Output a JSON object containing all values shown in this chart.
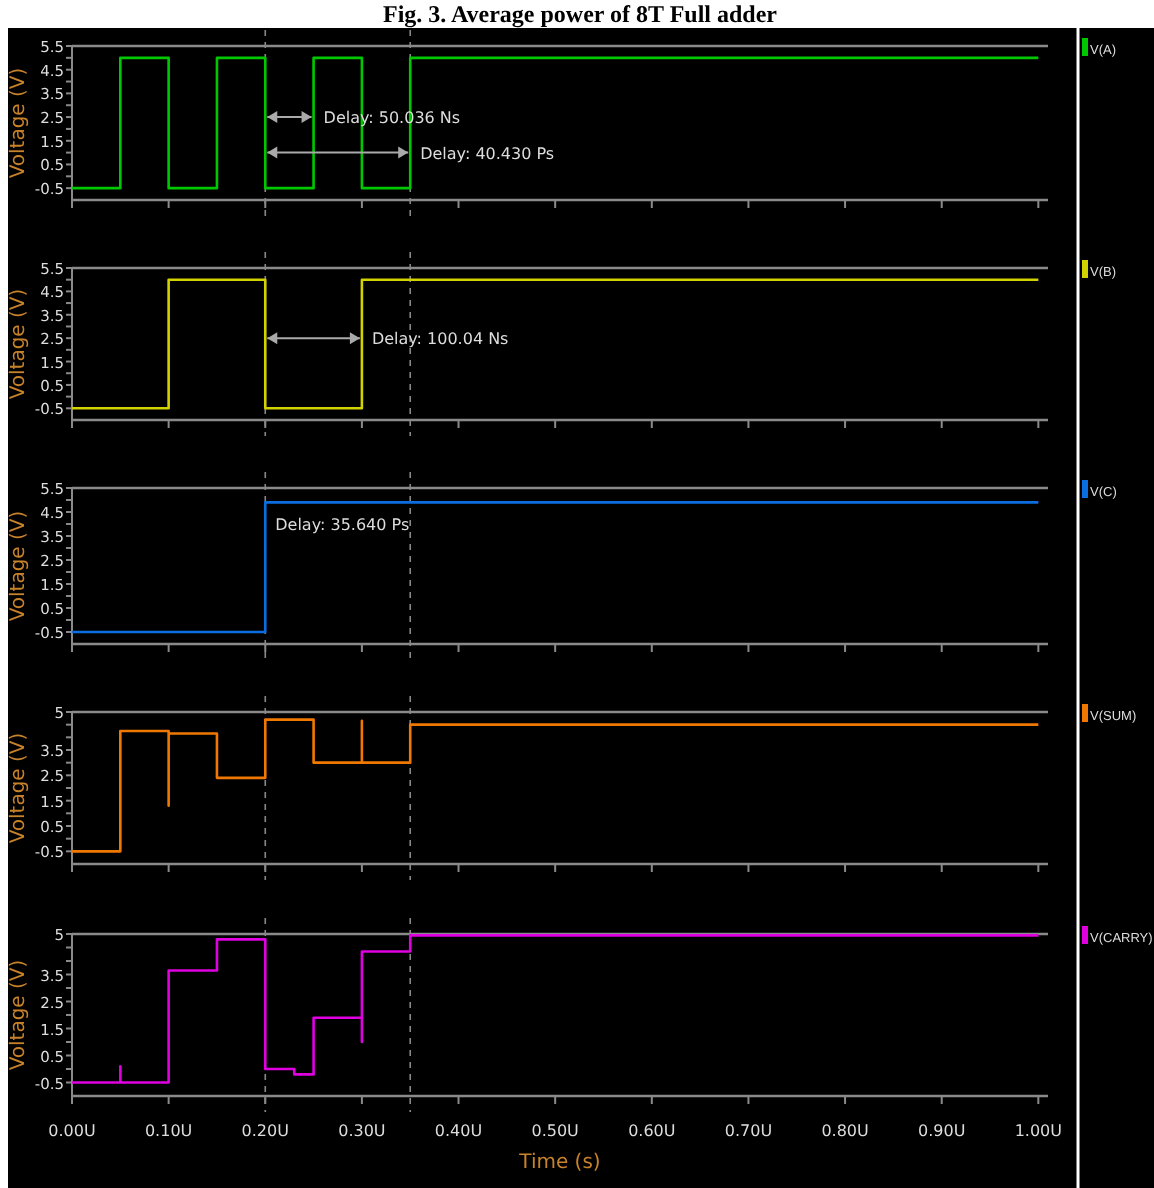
{
  "chart_data": [
    {
      "type": "line",
      "title": "Fig. 3. Average power of 8T Full adder",
      "ylabel": "Voltage (V)",
      "tick_labels": "y",
      "legend": "right",
      "xlim": [
        0,
        1.01
      ],
      "xticks": [
        0,
        0.1,
        0.2,
        0.3,
        0.4,
        0.5,
        0.6,
        0.7,
        0.8,
        0.9,
        1.0
      ],
      "ylim": [
        -1,
        5.5
      ],
      "yticks": [
        5.5,
        {
          "value": 5,
          "label": null
        },
        4.5,
        {
          "value": 4,
          "label": null
        },
        3.5,
        {
          "value": 3,
          "label": null
        },
        2.5,
        {
          "value": 2,
          "label": null
        },
        1.5,
        {
          "value": 1,
          "label": null
        },
        0.5,
        {
          "value": 0,
          "label": null
        },
        -0.5
      ],
      "series": [
        {
          "name": "V(A)",
          "color": "#00c800",
          "x": [
            0,
            0.05,
            0.05,
            0.1,
            0.1,
            0.15,
            0.15,
            0.2,
            0.2,
            0.25,
            0.25,
            0.3,
            0.3,
            0.35,
            0.35,
            1.0
          ],
          "values": [
            -0.5,
            -0.5,
            5.0,
            5.0,
            -0.5,
            -0.5,
            5.0,
            5.0,
            -0.5,
            -0.5,
            5.0,
            5.0,
            -0.5,
            -0.5,
            5.0,
            5.0
          ]
        }
      ],
      "ref_lines": [
        {
          "axis": "x",
          "value": 0.2
        },
        {
          "axis": "x",
          "value": 0.35
        }
      ],
      "annotations": [
        {
          "text": "Delay: 50.036 Ns",
          "x": 0.25,
          "y": 2.5
        },
        {
          "text": "Delay: 40.430 Ps",
          "x": 0.35,
          "y": 1.0
        }
      ]
    },
    {
      "type": "line",
      "ylabel": "Voltage (V)",
      "tick_labels": "y",
      "legend": "right",
      "xlim": [
        0,
        1.01
      ],
      "xticks": [
        0,
        0.1,
        0.2,
        0.3,
        0.4,
        0.5,
        0.6,
        0.7,
        0.8,
        0.9,
        1.0
      ],
      "ylim": [
        -1,
        5.5
      ],
      "yticks": [
        5.5,
        {
          "value": 5,
          "label": null
        },
        4.5,
        {
          "value": 4,
          "label": null
        },
        3.5,
        {
          "value": 3,
          "label": null
        },
        2.5,
        {
          "value": 2,
          "label": null
        },
        1.5,
        {
          "value": 1,
          "label": null
        },
        0.5,
        {
          "value": 0,
          "label": null
        },
        -0.5
      ],
      "series": [
        {
          "name": "V(B)",
          "color": "#d2d200",
          "x": [
            0,
            0.1,
            0.1,
            0.2,
            0.2,
            0.3,
            0.3,
            1.0
          ],
          "values": [
            -0.5,
            -0.5,
            5.0,
            5.0,
            -0.5,
            -0.5,
            5.0,
            5.0
          ]
        }
      ],
      "ref_lines": [
        {
          "axis": "x",
          "value": 0.2
        },
        {
          "axis": "x",
          "value": 0.35
        }
      ],
      "annotations": [
        {
          "text": "Delay: 100.04 Ns",
          "x": 0.3,
          "y": 2.5
        }
      ]
    },
    {
      "type": "line",
      "ylabel": "Voltage (V)",
      "tick_labels": "y",
      "legend": "right",
      "xlim": [
        0,
        1.01
      ],
      "xticks": [
        0,
        0.1,
        0.2,
        0.3,
        0.4,
        0.5,
        0.6,
        0.7,
        0.8,
        0.9,
        1.0
      ],
      "ylim": [
        -1,
        5.5
      ],
      "yticks": [
        5.5,
        {
          "value": 5,
          "label": null
        },
        4.5,
        {
          "value": 4,
          "label": null
        },
        3.5,
        {
          "value": 3,
          "label": null
        },
        2.5,
        {
          "value": 2,
          "label": null
        },
        1.5,
        {
          "value": 1,
          "label": null
        },
        0.5,
        {
          "value": 0,
          "label": null
        },
        -0.5
      ],
      "series": [
        {
          "name": "V(C)",
          "color": "#0a6ee0",
          "x": [
            0,
            0.2,
            0.2,
            1.0
          ],
          "values": [
            -0.5,
            -0.5,
            4.9,
            4.9
          ]
        }
      ],
      "ref_lines": [
        {
          "axis": "x",
          "value": 0.2
        },
        {
          "axis": "x",
          "value": 0.35
        }
      ],
      "annotations": [
        {
          "text": "Delay: 35.640 Ps",
          "x": 0.2,
          "y": 4.0
        }
      ]
    },
    {
      "type": "line",
      "ylabel": "Voltage (V)",
      "tick_labels": "y",
      "legend": "right",
      "xlim": [
        0,
        1.01
      ],
      "xticks": [
        0,
        0.1,
        0.2,
        0.3,
        0.4,
        0.5,
        0.6,
        0.7,
        0.8,
        0.9,
        1.0
      ],
      "ylim": [
        -1,
        5
      ],
      "yticks": [
        5.0,
        {
          "value": 4.5,
          "label": null
        },
        {
          "value": 4,
          "label": null
        },
        3.5,
        {
          "value": 3,
          "label": null
        },
        2.5,
        {
          "value": 2,
          "label": null
        },
        1.5,
        {
          "value": 1,
          "label": null
        },
        0.5,
        {
          "value": 0,
          "label": null
        },
        -0.5
      ],
      "series": [
        {
          "name": "V(SUM)",
          "color": "#f07800",
          "x": [
            0,
            0.05,
            0.05,
            0.1,
            0.1,
            0.1,
            0.15,
            0.15,
            0.2,
            0.2,
            0.25,
            0.25,
            0.3,
            0.3,
            0.3,
            0.35,
            0.35,
            1.0
          ],
          "values": [
            -0.5,
            -0.5,
            4.25,
            4.25,
            1.3,
            4.15,
            4.15,
            2.4,
            2.4,
            4.7,
            4.7,
            3.0,
            3.0,
            4.65,
            3.0,
            3.0,
            4.5,
            4.5
          ]
        }
      ],
      "ref_lines": [
        {
          "axis": "x",
          "value": 0.2
        },
        {
          "axis": "x",
          "value": 0.35
        }
      ]
    },
    {
      "type": "line",
      "xlabel": "Time (s)",
      "ylabel": "Voltage (V)",
      "legend": "right",
      "xlim": [
        0,
        1.01
      ],
      "xticks": [
        {
          "value": 0,
          "label": "0.00U"
        },
        {
          "value": 0.1,
          "label": "0.10U"
        },
        {
          "value": 0.2,
          "label": "0.20U"
        },
        {
          "value": 0.3,
          "label": "0.30U"
        },
        {
          "value": 0.4,
          "label": "0.40U"
        },
        {
          "value": 0.5,
          "label": "0.50U"
        },
        {
          "value": 0.6,
          "label": "0.60U"
        },
        {
          "value": 0.7,
          "label": "0.70U"
        },
        {
          "value": 0.8,
          "label": "0.80U"
        },
        {
          "value": 0.9,
          "label": "0.90U"
        },
        {
          "value": 1.0,
          "label": "1.00U"
        }
      ],
      "ylim": [
        -1,
        5
      ],
      "yticks": [
        5.0,
        {
          "value": 4.5,
          "label": null
        },
        {
          "value": 4,
          "label": null
        },
        3.5,
        {
          "value": 3,
          "label": null
        },
        2.5,
        {
          "value": 2,
          "label": null
        },
        1.5,
        {
          "value": 1,
          "label": null
        },
        0.5,
        {
          "value": 0,
          "label": null
        },
        -0.5
      ],
      "series": [
        {
          "name": "V(CARRY)",
          "color": "#e000e0",
          "x": [
            0,
            0.05,
            0.05,
            0.05,
            0.1,
            0.1,
            0.15,
            0.15,
            0.2,
            0.2,
            0.23,
            0.23,
            0.25,
            0.25,
            0.3,
            0.3,
            0.3,
            0.35,
            0.35,
            1.0
          ],
          "values": [
            -0.5,
            -0.5,
            0.1,
            -0.5,
            -0.5,
            3.65,
            3.65,
            4.8,
            4.8,
            0.0,
            0.0,
            -0.2,
            -0.2,
            1.9,
            1.9,
            1.0,
            4.35,
            4.35,
            4.95,
            4.95
          ]
        }
      ],
      "ref_lines": [
        {
          "axis": "x",
          "value": 0.2
        },
        {
          "axis": "x",
          "value": 0.35
        }
      ]
    }
  ]
}
